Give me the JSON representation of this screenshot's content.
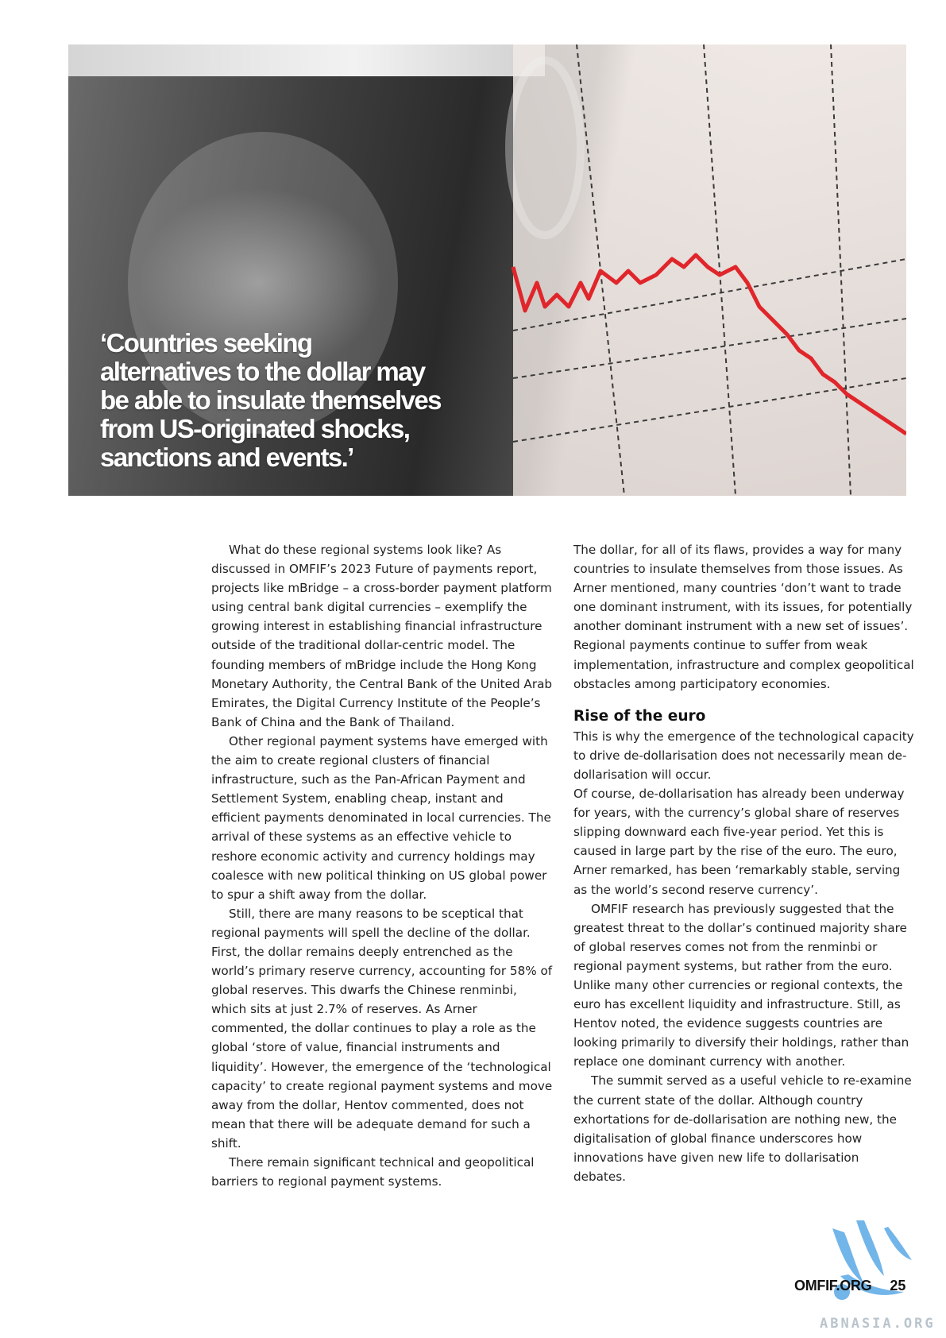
{
  "hero": {
    "quote": "‘Countries seeking alternatives to the dollar may be able to insulate themselves from US-originated shocks, sanctions and events.’"
  },
  "left_column": {
    "p1": "What do these regional systems look like? As discussed in OMFIF’s 2023 Future of payments report, projects like mBridge – a cross-border payment platform using central bank digital currencies – exemplify the growing interest in establishing financial infrastructure outside of the traditional dollar-centric model. The founding members of mBridge include the Hong Kong Monetary Authority, the Central Bank of the United Arab Emirates, the Digital Currency Institute of the People’s Bank of China and the Bank of Thailand.",
    "p2": "Other regional payment systems have emerged with the aim to create regional clusters of financial infrastructure, such as the Pan-African Payment and Settlement System, enabling cheap, instant and efficient payments denominated in local currencies. The arrival of these systems as an effective vehicle to reshore economic activity and currency holdings may coalesce with new political thinking on US global power to spur a shift away from the dollar.",
    "p3": "Still, there are many reasons to be sceptical that regional payments will spell the decline of the dollar. First, the dollar remains deeply entrenched as the world’s primary reserve currency, accounting for 58% of global reserves. This dwarfs the Chinese renminbi, which sits at just 2.7% of reserves. As Arner commented, the dollar continues to play a role as the global ‘store of value, financial instruments and liquidity’. However, the emergence of the ‘technological capacity’ to create regional payment systems and move away from the dollar, Hentov commented, does not mean that there will be adequate demand for such a shift.",
    "p4": "There remain significant technical and geopolitical barriers to regional payment systems."
  },
  "right_column": {
    "p1": "The dollar, for all of its flaws, provides a way for many countries to insulate themselves from those issues. As Arner mentioned, many countries ‘don’t want to trade one dominant instrument, with its issues, for potentially another dominant instrument with a new set of issues’. Regional payments continue to suffer from weak implementation, infrastructure and complex geopolitical obstacles among participatory economies.",
    "heading": "Rise of the euro",
    "p2": "This is why the emergence of the technological capacity to drive de-dollarisation does not necessarily mean de-dollarisation will occur.",
    "p3": "Of course, de-dollarisation has already been underway for years, with the currency’s global share of reserves slipping downward each five-year period. Yet this is caused in large part by the rise of the euro. The euro, Arner remarked, has been ‘remarkably stable, serving as the world’s second reserve currency’.",
    "p4": "OMFIF research has previously suggested that the greatest threat to the dollar’s continued majority share of global reserves comes not from the renminbi or regional payment systems, but rather from the euro. Unlike many other currencies or regional contexts, the euro has excellent liquidity and infrastructure. Still, as Hentov noted, the evidence suggests countries are looking primarily to diversify their holdings, rather than replace one dominant currency with another.",
    "p5": "The summit served as a useful vehicle to re-examine the current state of the dollar. Although country exhortations for de-dollarisation are nothing new, the digitalisation of global finance underscores how innovations have given new life to dollarisation debates."
  },
  "footer": {
    "site": "OMFIF.ORG",
    "page_number": "25"
  },
  "watermark": {
    "text": "ABNASIA.ORG",
    "color": "#5aa9e6"
  },
  "colors": {
    "chart_line": "#e0262b"
  }
}
